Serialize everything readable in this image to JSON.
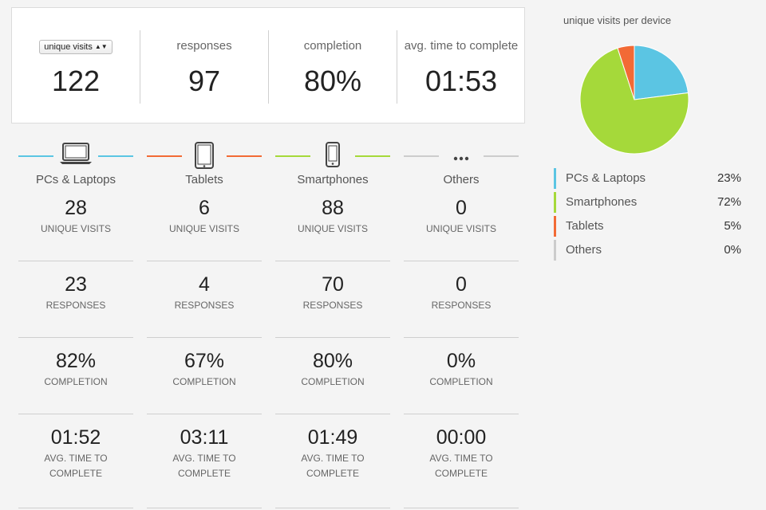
{
  "summary": {
    "select": {
      "value": "unique visits"
    },
    "items": [
      {
        "label": "unique visits",
        "value": "122"
      },
      {
        "label": "responses",
        "value": "97"
      },
      {
        "label": "completion",
        "value": "80%"
      },
      {
        "label": "avg. time to complete",
        "value": "01:53"
      }
    ]
  },
  "devices": [
    {
      "name": "PCs & Laptops",
      "icon": "laptop-icon",
      "color": "#5bc5e3",
      "visits": "28",
      "responses": "23",
      "completion": "82%",
      "time": "01:52"
    },
    {
      "name": "Tablets",
      "icon": "tablet-icon",
      "color": "#f26a35",
      "visits": "6",
      "responses": "4",
      "completion": "67%",
      "time": "03:11"
    },
    {
      "name": "Smartphones",
      "icon": "smartphone-icon",
      "color": "#a5d93a",
      "visits": "88",
      "responses": "70",
      "completion": "80%",
      "time": "01:49"
    },
    {
      "name": "Others",
      "icon": "ellipsis-icon",
      "color": "#cccccc",
      "visits": "0",
      "responses": "0",
      "completion": "0%",
      "time": "00:00"
    }
  ],
  "captions": {
    "visits": "UNIQUE VISITS",
    "responses": "RESPONSES",
    "completion": "COMPLETION",
    "time": "AVG. TIME TO COMPLETE"
  },
  "chart_data": {
    "type": "pie",
    "title": "unique visits per device",
    "slices": [
      {
        "name": "PCs & Laptops",
        "value": 23,
        "label": "23%",
        "color": "#5bc5e3"
      },
      {
        "name": "Smartphones",
        "value": 72,
        "label": "72%",
        "color": "#a5d93a"
      },
      {
        "name": "Tablets",
        "value": 5,
        "label": "5%",
        "color": "#f26a35"
      },
      {
        "name": "Others",
        "value": 0,
        "label": "0%",
        "color": "#cccccc"
      }
    ]
  }
}
